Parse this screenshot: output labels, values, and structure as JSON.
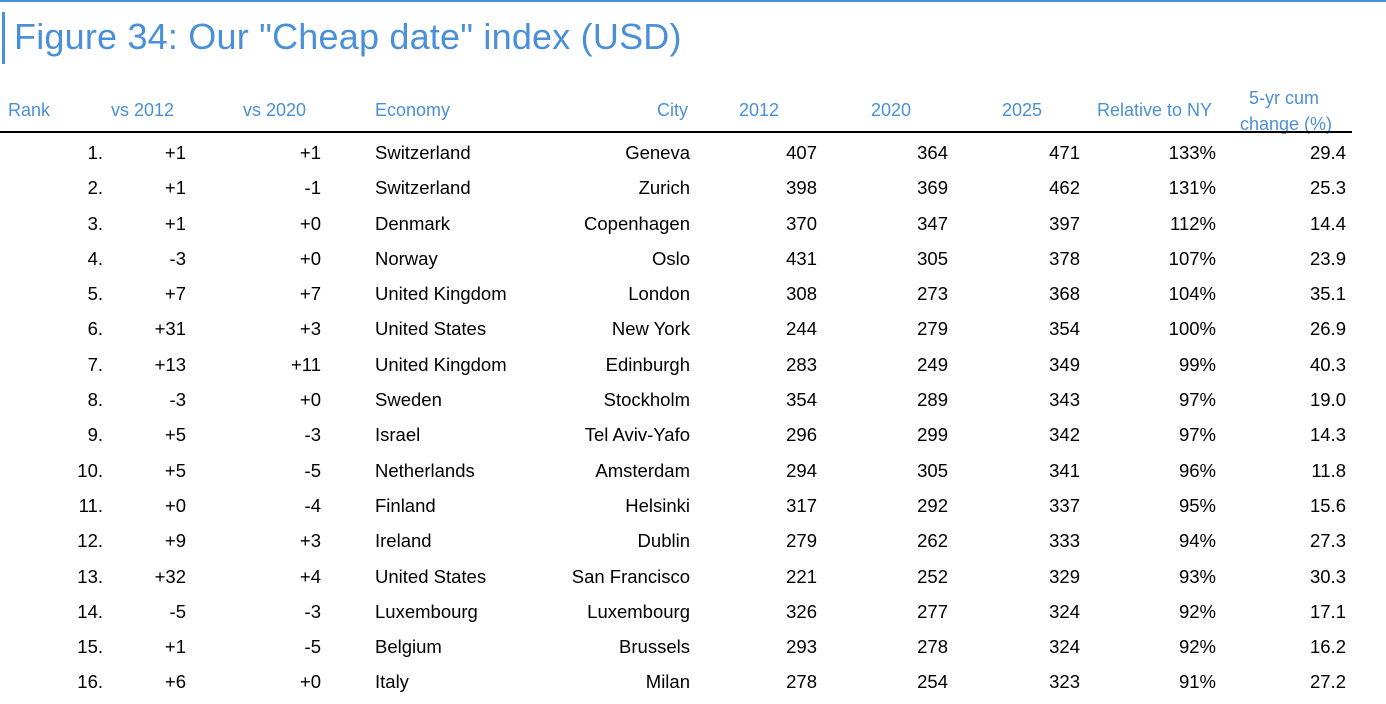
{
  "title": "Figure 34: Our \"Cheap date\" index (USD)",
  "columns": {
    "rank": "Rank",
    "vs2012": "vs 2012",
    "vs2020": "vs 2020",
    "economy": "Economy",
    "city": "City",
    "y2012": "2012",
    "y2020": "2020",
    "y2025": "2025",
    "relative": "Relative to NY",
    "cum_line1": "5-yr cum",
    "cum_line2": "change (%)"
  },
  "rows": [
    {
      "rank": "1.",
      "vs2012": "+1",
      "vs2020": "+1",
      "economy": "Switzerland",
      "city": "Geneva",
      "y2012": "407",
      "y2020": "364",
      "y2025": "471",
      "relative": "133%",
      "cum": "29.4"
    },
    {
      "rank": "2.",
      "vs2012": "+1",
      "vs2020": "-1",
      "economy": "Switzerland",
      "city": "Zurich",
      "y2012": "398",
      "y2020": "369",
      "y2025": "462",
      "relative": "131%",
      "cum": "25.3"
    },
    {
      "rank": "3.",
      "vs2012": "+1",
      "vs2020": "+0",
      "economy": "Denmark",
      "city": "Copenhagen",
      "y2012": "370",
      "y2020": "347",
      "y2025": "397",
      "relative": "112%",
      "cum": "14.4"
    },
    {
      "rank": "4.",
      "vs2012": "-3",
      "vs2020": "+0",
      "economy": "Norway",
      "city": "Oslo",
      "y2012": "431",
      "y2020": "305",
      "y2025": "378",
      "relative": "107%",
      "cum": "23.9"
    },
    {
      "rank": "5.",
      "vs2012": "+7",
      "vs2020": "+7",
      "economy": "United Kingdom",
      "city": "London",
      "y2012": "308",
      "y2020": "273",
      "y2025": "368",
      "relative": "104%",
      "cum": "35.1"
    },
    {
      "rank": "6.",
      "vs2012": "+31",
      "vs2020": "+3",
      "economy": "United States",
      "city": "New York",
      "y2012": "244",
      "y2020": "279",
      "y2025": "354",
      "relative": "100%",
      "cum": "26.9"
    },
    {
      "rank": "7.",
      "vs2012": "+13",
      "vs2020": "+11",
      "economy": "United Kingdom",
      "city": "Edinburgh",
      "y2012": "283",
      "y2020": "249",
      "y2025": "349",
      "relative": "99%",
      "cum": "40.3"
    },
    {
      "rank": "8.",
      "vs2012": "-3",
      "vs2020": "+0",
      "economy": "Sweden",
      "city": "Stockholm",
      "y2012": "354",
      "y2020": "289",
      "y2025": "343",
      "relative": "97%",
      "cum": "19.0"
    },
    {
      "rank": "9.",
      "vs2012": "+5",
      "vs2020": "-3",
      "economy": "Israel",
      "city": "Tel Aviv-Yafo",
      "y2012": "296",
      "y2020": "299",
      "y2025": "342",
      "relative": "97%",
      "cum": "14.3"
    },
    {
      "rank": "10.",
      "vs2012": "+5",
      "vs2020": "-5",
      "economy": "Netherlands",
      "city": "Amsterdam",
      "y2012": "294",
      "y2020": "305",
      "y2025": "341",
      "relative": "96%",
      "cum": "11.8"
    },
    {
      "rank": "11.",
      "vs2012": "+0",
      "vs2020": "-4",
      "economy": "Finland",
      "city": "Helsinki",
      "y2012": "317",
      "y2020": "292",
      "y2025": "337",
      "relative": "95%",
      "cum": "15.6"
    },
    {
      "rank": "12.",
      "vs2012": "+9",
      "vs2020": "+3",
      "economy": "Ireland",
      "city": "Dublin",
      "y2012": "279",
      "y2020": "262",
      "y2025": "333",
      "relative": "94%",
      "cum": "27.3"
    },
    {
      "rank": "13.",
      "vs2012": "+32",
      "vs2020": "+4",
      "economy": "United States",
      "city": "San Francisco",
      "y2012": "221",
      "y2020": "252",
      "y2025": "329",
      "relative": "93%",
      "cum": "30.3"
    },
    {
      "rank": "14.",
      "vs2012": "-5",
      "vs2020": "-3",
      "economy": "Luxembourg",
      "city": "Luxembourg",
      "y2012": "326",
      "y2020": "277",
      "y2025": "324",
      "relative": "92%",
      "cum": "17.1"
    },
    {
      "rank": "15.",
      "vs2012": "+1",
      "vs2020": "-5",
      "economy": "Belgium",
      "city": "Brussels",
      "y2012": "293",
      "y2020": "278",
      "y2025": "324",
      "relative": "92%",
      "cum": "16.2"
    },
    {
      "rank": "16.",
      "vs2012": "+6",
      "vs2020": "+0",
      "economy": "Italy",
      "city": "Milan",
      "y2012": "278",
      "y2020": "254",
      "y2025": "323",
      "relative": "91%",
      "cum": "27.2"
    }
  ]
}
